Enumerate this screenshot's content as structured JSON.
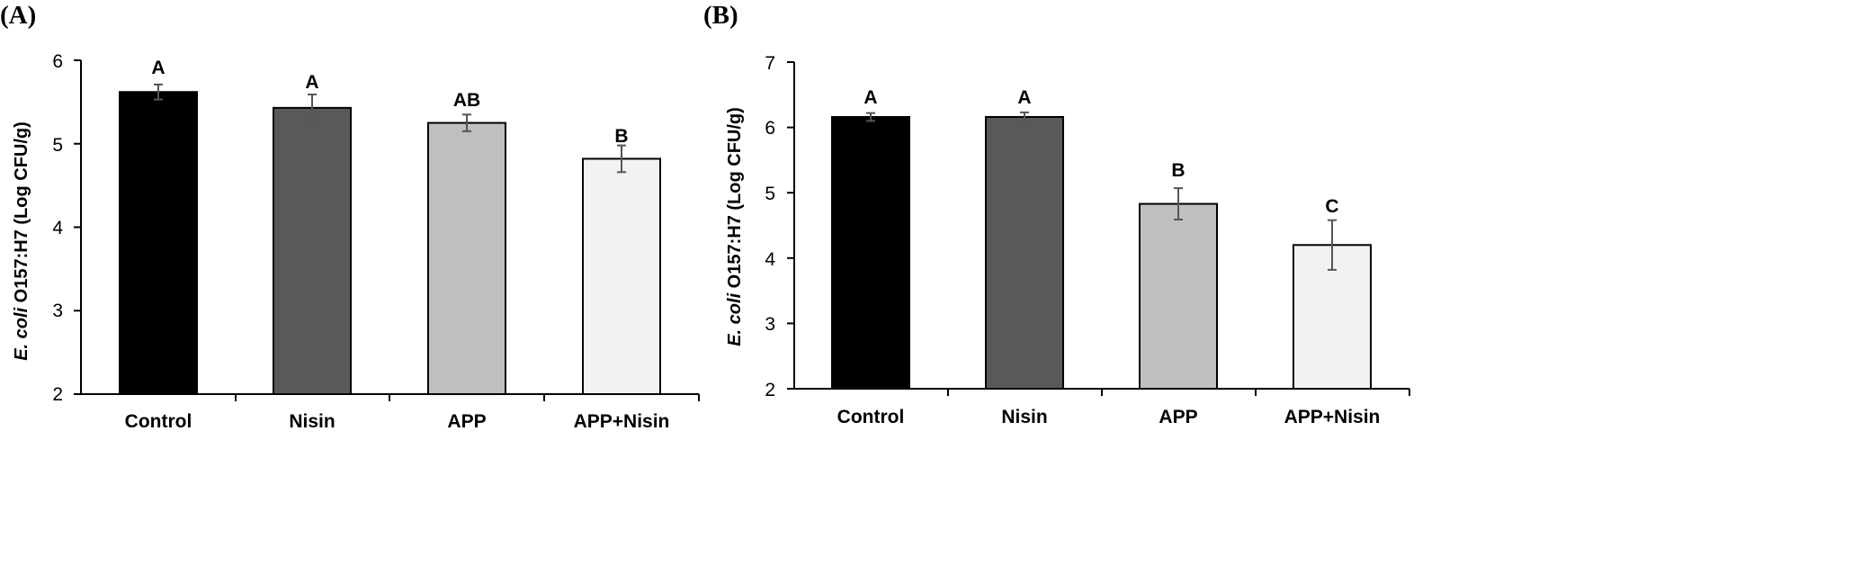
{
  "chart_data": [
    {
      "type": "bar",
      "panel_label": "(A)",
      "categories": [
        "Control",
        "Nisin",
        "APP",
        "APP+Nisin"
      ],
      "values": [
        5.62,
        5.43,
        5.25,
        4.82
      ],
      "errors": [
        0.09,
        0.16,
        0.1,
        0.16
      ],
      "significance": [
        "A",
        "A",
        "AB",
        "B"
      ],
      "colors": [
        "#000000",
        "#595959",
        "#bfbfbf",
        "#f2f2f2"
      ],
      "ylabel_italic": "E. coli",
      "ylabel_rest": " O157:H7 (Log CFU/g)",
      "ylim": [
        2,
        6
      ],
      "yticks": [
        "2",
        "3",
        "4",
        "5",
        "6"
      ]
    },
    {
      "type": "bar",
      "panel_label": "(B)",
      "categories": [
        "Control",
        "Nisin",
        "APP",
        "APP+Nisin"
      ],
      "values": [
        6.16,
        6.16,
        4.83,
        4.2
      ],
      "errors": [
        0.06,
        0.07,
        0.24,
        0.38
      ],
      "significance": [
        "A",
        "A",
        "B",
        "C"
      ],
      "colors": [
        "#000000",
        "#595959",
        "#bfbfbf",
        "#f2f2f2"
      ],
      "ylabel_italic": "E. coli",
      "ylabel_rest": " O157:H7 (Log CFU/g)",
      "ylim": [
        2,
        7
      ],
      "yticks": [
        "2",
        "3",
        "4",
        "5",
        "6",
        "7"
      ]
    }
  ]
}
